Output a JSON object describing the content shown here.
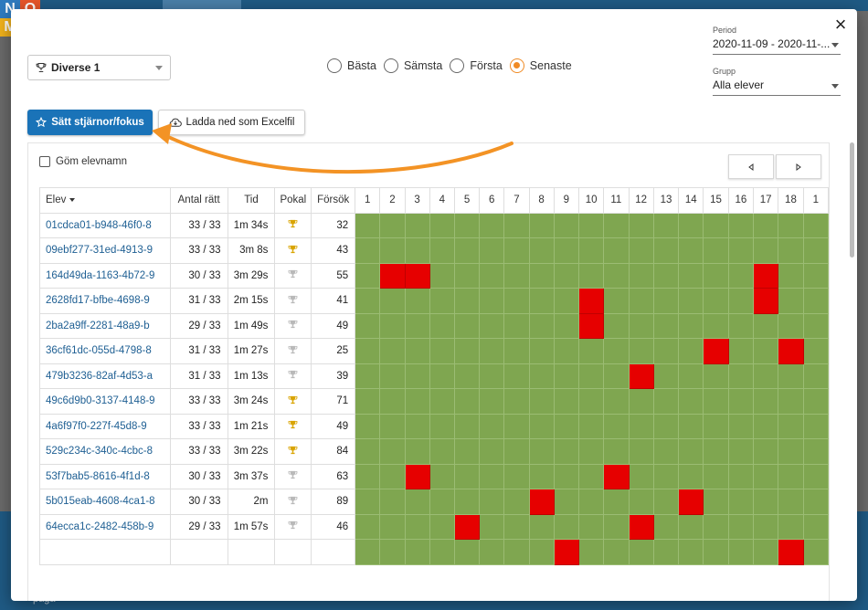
{
  "background": {
    "logo_letters": [
      "N",
      "O",
      "M",
      ""
    ],
    "bottom_text": "pågå"
  },
  "modal": {
    "close_icon": "close-icon",
    "quiz_select": {
      "value": "Diverse 1",
      "icon": "trophy-icon"
    },
    "radios": [
      {
        "label": "Bästa",
        "selected": false
      },
      {
        "label": "Sämsta",
        "selected": false
      },
      {
        "label": "Första",
        "selected": false
      },
      {
        "label": "Senaste",
        "selected": true
      }
    ],
    "period": {
      "label": "Period",
      "value": "2020-11-09 - 2020-11-..."
    },
    "group": {
      "label": "Grupp",
      "value": "Alla elever"
    },
    "buttons": {
      "stars": "Sätt stjärnor/fokus",
      "excel": "Ladda ned som Excelfil"
    },
    "hide_names_label": "Göm elevnamn",
    "table": {
      "headers": {
        "name": "Elev",
        "correct": "Antal rätt",
        "time": "Tid",
        "trophy": "Pokal",
        "attempts": "Försök"
      },
      "questions": [
        "1",
        "2",
        "3",
        "4",
        "5",
        "6",
        "7",
        "8",
        "9",
        "10",
        "11",
        "12",
        "13",
        "14",
        "15",
        "16",
        "17",
        "18",
        "1"
      ],
      "rows": [
        {
          "name": "01cdca01-b948-46f0-8",
          "correct": "33 / 33",
          "time": "1m 34s",
          "trophy": "gold",
          "attempts": "32",
          "wrong": []
        },
        {
          "name": "09ebf277-31ed-4913-9",
          "correct": "33 / 33",
          "time": "3m 8s",
          "trophy": "gold",
          "attempts": "43",
          "wrong": []
        },
        {
          "name": "164d49da-1163-4b72-9",
          "correct": "30 / 33",
          "time": "3m 29s",
          "trophy": "silver",
          "attempts": "55",
          "wrong": [
            2,
            3,
            17
          ]
        },
        {
          "name": "2628fd17-bfbe-4698-9",
          "correct": "31 / 33",
          "time": "2m 15s",
          "trophy": "silver",
          "attempts": "41",
          "wrong": [
            10,
            17
          ]
        },
        {
          "name": "2ba2a9ff-2281-48a9-b",
          "correct": "29 / 33",
          "time": "1m 49s",
          "trophy": "silver",
          "attempts": "49",
          "wrong": [
            10
          ]
        },
        {
          "name": "36cf61dc-055d-4798-8",
          "correct": "31 / 33",
          "time": "1m 27s",
          "trophy": "silver",
          "attempts": "25",
          "wrong": [
            15,
            18
          ]
        },
        {
          "name": "479b3236-82af-4d53-a",
          "correct": "31 / 33",
          "time": "1m 13s",
          "trophy": "silver",
          "attempts": "39",
          "wrong": [
            12
          ]
        },
        {
          "name": "49c6d9b0-3137-4148-9",
          "correct": "33 / 33",
          "time": "3m 24s",
          "trophy": "gold",
          "attempts": "71",
          "wrong": []
        },
        {
          "name": "4a6f97f0-227f-45d8-9",
          "correct": "33 / 33",
          "time": "1m 21s",
          "trophy": "gold",
          "attempts": "49",
          "wrong": []
        },
        {
          "name": "529c234c-340c-4cbc-8",
          "correct": "33 / 33",
          "time": "3m 22s",
          "trophy": "gold",
          "attempts": "84",
          "wrong": []
        },
        {
          "name": "53f7bab5-8616-4f1d-8",
          "correct": "30 / 33",
          "time": "3m 37s",
          "trophy": "silver",
          "attempts": "63",
          "wrong": [
            3,
            11
          ]
        },
        {
          "name": "5b015eab-4608-4ca1-8",
          "correct": "30 / 33",
          "time": "2m",
          "trophy": "silver",
          "attempts": "89",
          "wrong": [
            8,
            14
          ]
        },
        {
          "name": "64ecca1c-2482-458b-9",
          "correct": "29 / 33",
          "time": "1m 57s",
          "trophy": "silver",
          "attempts": "46",
          "wrong": [
            5,
            12
          ]
        },
        {
          "name": "",
          "correct": "",
          "time": "",
          "trophy": "",
          "attempts": "",
          "wrong": [
            9,
            18
          ]
        }
      ]
    },
    "colors": {
      "correct": "#7fa650",
      "wrong": "#e60000",
      "accent": "#f08a24",
      "primary": "#1a73b8",
      "gold": "#d9a400",
      "silver": "#b9b9b9"
    }
  }
}
